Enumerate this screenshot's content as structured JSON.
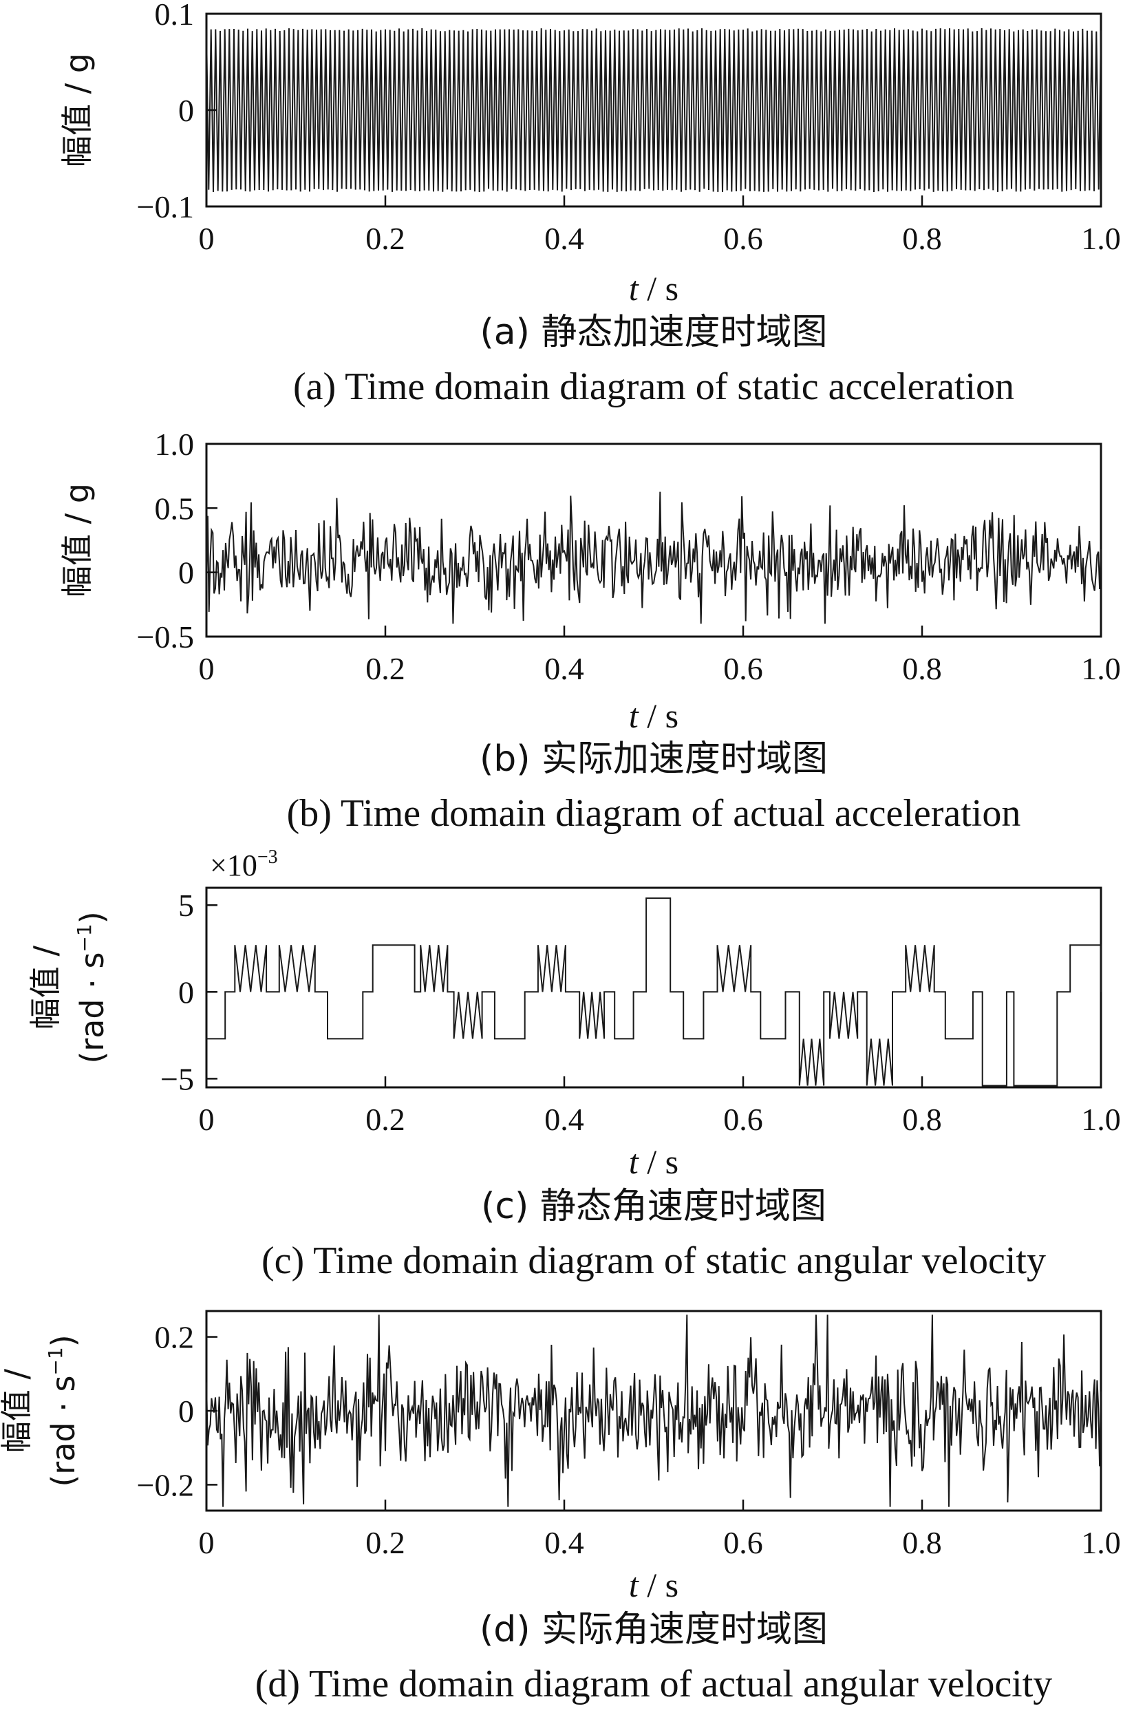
{
  "chart_data": [
    {
      "type": "line",
      "xlim": [
        0,
        1.0
      ],
      "ylim": [
        -0.1,
        0.1
      ],
      "xticks": [
        "0",
        "0.2",
        "0.4",
        "0.6",
        "0.8",
        "1.0"
      ],
      "yticks": [
        "−0.1",
        "0",
        "0.1"
      ],
      "ytick_values": [
        -0.1,
        0,
        0.1
      ],
      "xlabel": "t / s",
      "ylabel": "幅值 / g",
      "caption_cn": "(a)  静态加速度时域图",
      "caption_en": "(a)  Time domain diagram of static acceleration",
      "multiplier": "",
      "signal": "alternating ±0.085 g oscillation (~180 cycles over 1 s)",
      "series": [
        {
          "x_range": [
            0,
            1.0
          ],
          "amplitude": 0.085
        }
      ]
    },
    {
      "type": "line",
      "xlim": [
        0,
        1.0
      ],
      "ylim": [
        -0.5,
        1.0
      ],
      "xticks": [
        "0",
        "0.2",
        "0.4",
        "0.6",
        "0.8",
        "1.0"
      ],
      "yticks": [
        "−0.5",
        "0",
        "0.5",
        "1.0"
      ],
      "ytick_values": [
        -0.5,
        0,
        0.5,
        1.0
      ],
      "xlabel": "t / s",
      "ylabel": "幅值 / g",
      "caption_cn": "(b)  实际加速度时域图",
      "caption_en": "(b)  Time domain diagram of actual acceleration",
      "multiplier": "",
      "signal": "noisy signal approx. between −0.4 and 0.75 g",
      "series": [
        {
          "x_range": [
            0,
            1.0
          ],
          "min": -0.4,
          "max": 0.75
        }
      ]
    },
    {
      "type": "line",
      "xlim": [
        0,
        1.0
      ],
      "ylim": [
        -5.5,
        6.0
      ],
      "xticks": [
        "0",
        "0.2",
        "0.4",
        "0.6",
        "0.8",
        "1.0"
      ],
      "yticks": [
        "−5",
        "0",
        "5"
      ],
      "ytick_values": [
        -5,
        0,
        5
      ],
      "xlabel": "t / s",
      "ylabel_line1": "幅值 /",
      "ylabel_line2": "(rad · s",
      "ylabel_sup": "−1",
      "ylabel_close": ")",
      "caption_cn": "(c)  静态角速度时域图",
      "caption_en": "(c)  Time domain diagram of static angular velocity",
      "multiplier": "×10",
      "multiplier_exp": "−3",
      "signal": "quantized steps at 0, ±2.7, ±5.4 ×10^-3",
      "series": [
        {
          "x_range": [
            0,
            1.0
          ],
          "levels": [
            -5.4,
            -2.7,
            0,
            2.7,
            5.4
          ]
        }
      ]
    },
    {
      "type": "line",
      "xlim": [
        0,
        1.0
      ],
      "ylim": [
        -0.27,
        0.27
      ],
      "xticks": [
        "0",
        "0.2",
        "0.4",
        "0.6",
        "0.8",
        "1.0"
      ],
      "yticks": [
        "−0.2",
        "0",
        "0.2"
      ],
      "ytick_values": [
        -0.2,
        0,
        0.2
      ],
      "xlabel": "t / s",
      "ylabel_line1": "幅值 /",
      "ylabel_line2": "(rad · s",
      "ylabel_sup": "−1",
      "ylabel_close": ")",
      "caption_cn": "(d)  实际角速度时域图",
      "caption_en": "(d)  Time domain diagram of actual angular velocity",
      "multiplier": "",
      "signal": "noisy signal approx. between −0.26 and 0.26 rad/s",
      "series": [
        {
          "x_range": [
            0,
            1.0
          ],
          "min": -0.26,
          "max": 0.26
        }
      ]
    }
  ]
}
